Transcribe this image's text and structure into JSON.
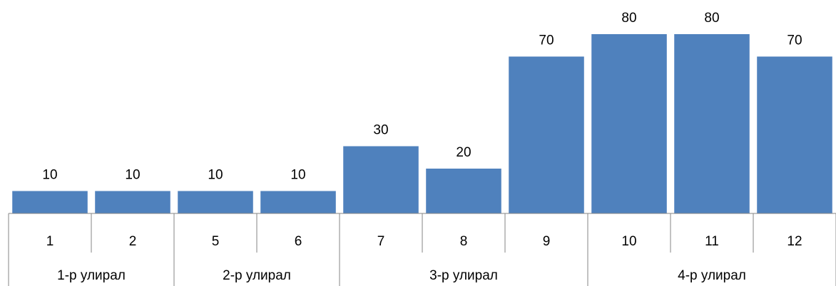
{
  "chart_data": {
    "type": "bar",
    "categories": [
      "1",
      "2",
      "5",
      "6",
      "7",
      "8",
      "9",
      "10",
      "11",
      "12"
    ],
    "groups": [
      "1-р улирал",
      "1-р улирал",
      "2-р улирал",
      "2-р улирал",
      "3-р улирал",
      "3-р улирал",
      "3-р улирал",
      "4-р улирал",
      "4-р улирал",
      "4-р улирал"
    ],
    "values": [
      10,
      10,
      10,
      10,
      30,
      20,
      70,
      80,
      80,
      70
    ],
    "color": "#4f81bd"
  }
}
